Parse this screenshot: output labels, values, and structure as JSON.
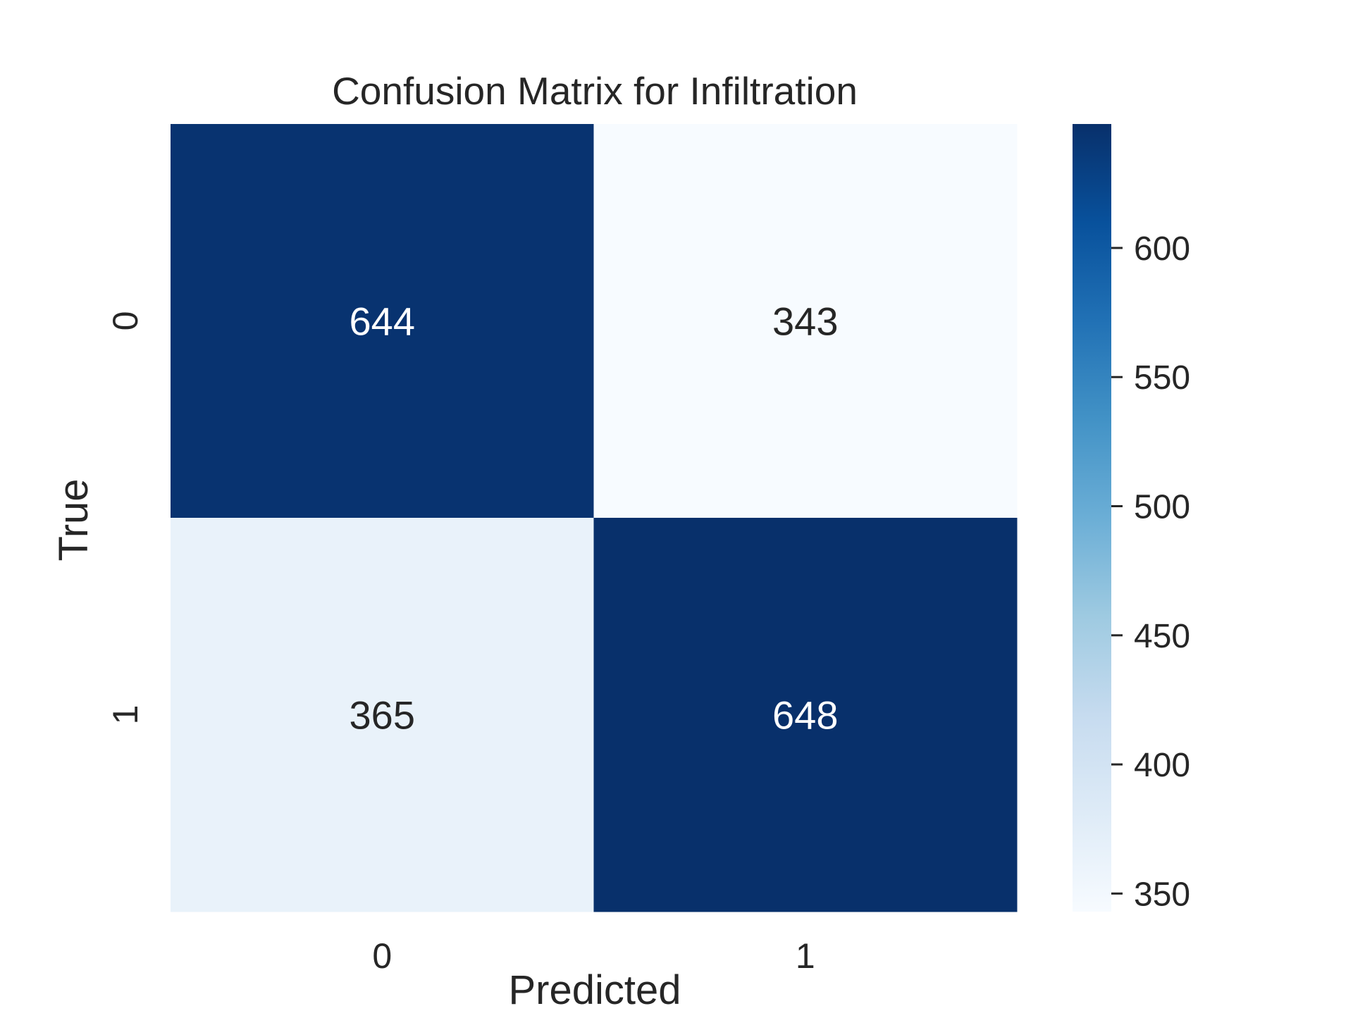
{
  "chart_data": {
    "type": "heatmap",
    "title": "Confusion Matrix for Infiltration",
    "xlabel": "Predicted",
    "ylabel": "True",
    "x_categories": [
      "0",
      "1"
    ],
    "y_categories": [
      "0",
      "1"
    ],
    "values": [
      [
        644,
        343
      ],
      [
        365,
        648
      ]
    ],
    "colormap": "Blues",
    "colorbar": {
      "range": [
        343,
        648
      ],
      "ticks": [
        350,
        400,
        450,
        500,
        550,
        600
      ],
      "tick_labels": [
        "350",
        "400",
        "450",
        "500",
        "550",
        "600"
      ]
    },
    "grid": false,
    "colors": {
      "low": "#f7fbff",
      "high": "#08306b",
      "text_dark": "#262626",
      "text_light": "#ffffff"
    }
  }
}
